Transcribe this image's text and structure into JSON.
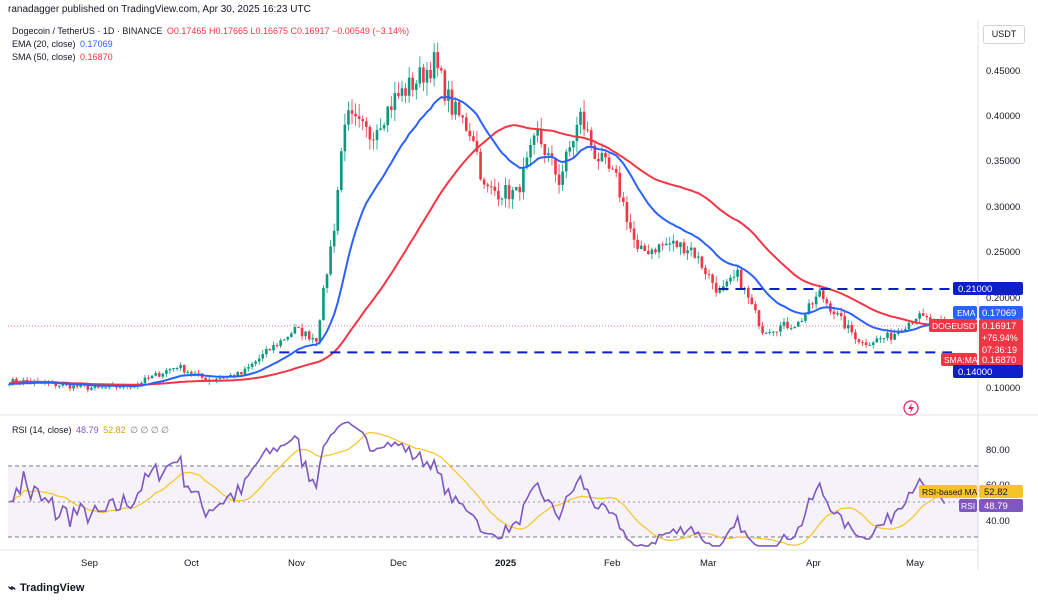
{
  "header": {
    "published": "ranadagger published on TradingView.com, Apr 30, 2025 16:23 UTC"
  },
  "legend": {
    "symbol": "Dogecoin / TetherUS · 1D · BINANCE",
    "ohlc": "O0.17465  H0.17665  L0.16675  C0.16917  −0.00549 (−3.14%)",
    "ema_label": "EMA (20, close)",
    "ema_value": "0.17069",
    "sma_label": "SMA (50, close)",
    "sma_value": "0.16870",
    "rsi_label": "RSI (14, close)",
    "rsi_value": "48.79",
    "rsi_ma_value": "52.82",
    "rsi_extra": "∅ ∅ ∅ ∅"
  },
  "axis": {
    "currency": "USDT"
  },
  "tags": {
    "resist": "0.21000",
    "ema": "EMA",
    "ema_v": "0.17069",
    "price_name": "DOGEUSDT",
    "price_v": "0.16917",
    "price_pct": "+76.94%",
    "price_time": "07:36:19",
    "sma": "SMA:MA",
    "sma_v": "0.16870",
    "support": "0.14000",
    "rsi_ma": "RSI-based MA",
    "rsi_ma_v": "52.82",
    "rsi": "RSI",
    "rsi_v": "48.79"
  },
  "footer": {
    "brand": "TradingView"
  },
  "colors": {
    "ema": "#2962ff",
    "sma": "#f23645",
    "up": "#089981",
    "down": "#f23645",
    "rsi": "#7e57c2",
    "rsi_ma": "#f7c325",
    "level": "#0c1fc9"
  },
  "chart_data": [
    {
      "type": "candlestick",
      "title": "Dogecoin / TetherUS · 1D · BINANCE",
      "x_ticks": [
        "Sep",
        "Oct",
        "Nov",
        "Dec",
        "2025",
        "Feb",
        "Mar",
        "Apr",
        "May"
      ],
      "y_ticks": [
        "0.10000",
        "0.15000",
        "0.20000",
        "0.25000",
        "0.30000",
        "0.35000",
        "0.40000",
        "0.45000"
      ],
      "ylim": [
        0.08,
        0.49
      ],
      "horizontal_levels": [
        0.21,
        0.14
      ],
      "close_path": [
        {
          "date": "2024-08-15",
          "c": 0.108
        },
        {
          "date": "2024-08-25",
          "c": 0.104
        },
        {
          "date": "2024-09-05",
          "c": 0.1
        },
        {
          "date": "2024-09-15",
          "c": 0.104
        },
        {
          "date": "2024-09-27",
          "c": 0.125
        },
        {
          "date": "2024-10-05",
          "c": 0.11
        },
        {
          "date": "2024-10-15",
          "c": 0.116
        },
        {
          "date": "2024-10-22",
          "c": 0.14
        },
        {
          "date": "2024-10-30",
          "c": 0.165
        },
        {
          "date": "2024-11-05",
          "c": 0.155
        },
        {
          "date": "2024-11-10",
          "c": 0.28
        },
        {
          "date": "2024-11-13",
          "c": 0.4
        },
        {
          "date": "2024-11-20",
          "c": 0.38
        },
        {
          "date": "2024-11-27",
          "c": 0.42
        },
        {
          "date": "2024-12-03",
          "c": 0.44
        },
        {
          "date": "2024-12-08",
          "c": 0.46
        },
        {
          "date": "2024-12-13",
          "c": 0.41
        },
        {
          "date": "2024-12-19",
          "c": 0.38
        },
        {
          "date": "2024-12-22",
          "c": 0.32
        },
        {
          "date": "2024-12-31",
          "c": 0.315
        },
        {
          "date": "2025-01-06",
          "c": 0.38
        },
        {
          "date": "2025-01-12",
          "c": 0.33
        },
        {
          "date": "2025-01-18",
          "c": 0.4
        },
        {
          "date": "2025-01-22",
          "c": 0.36
        },
        {
          "date": "2025-01-28",
          "c": 0.33
        },
        {
          "date": "2025-02-03",
          "c": 0.25
        },
        {
          "date": "2025-02-12",
          "c": 0.26
        },
        {
          "date": "2025-02-18",
          "c": 0.255
        },
        {
          "date": "2025-02-26",
          "c": 0.205
        },
        {
          "date": "2025-03-03",
          "c": 0.225
        },
        {
          "date": "2025-03-10",
          "c": 0.165
        },
        {
          "date": "2025-03-20",
          "c": 0.172
        },
        {
          "date": "2025-03-26",
          "c": 0.205
        },
        {
          "date": "2025-04-02",
          "c": 0.17
        },
        {
          "date": "2025-04-07",
          "c": 0.15
        },
        {
          "date": "2025-04-15",
          "c": 0.158
        },
        {
          "date": "2025-04-22",
          "c": 0.18
        },
        {
          "date": "2025-04-30",
          "c": 0.16917
        }
      ],
      "ema20_last": 0.17069,
      "sma50_last": 0.1687
    },
    {
      "type": "line",
      "title": "RSI (14, close)",
      "y_ticks": [
        "40.00",
        "60.00",
        "80.00"
      ],
      "ylim": [
        24,
        96
      ],
      "bands": [
        70,
        30
      ],
      "rsi_last": 48.79,
      "rsi_ma_last": 52.82
    }
  ]
}
